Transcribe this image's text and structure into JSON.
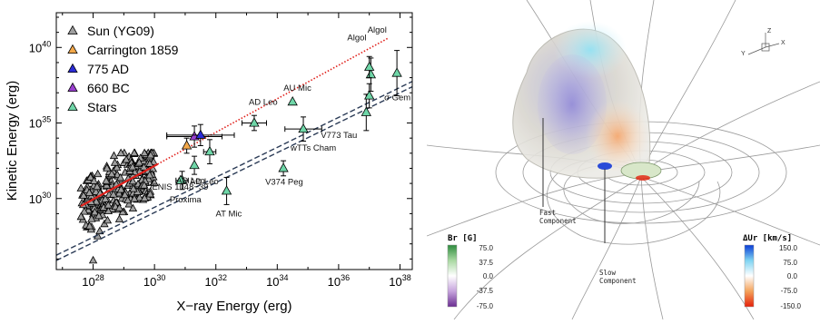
{
  "chart_data": [
    {
      "type": "scatter",
      "xlabel": "X−ray Energy (erg)",
      "ylabel": "Kinetic Energy (erg)",
      "xscale": "log",
      "yscale": "log",
      "xlim_log10": [
        26.8,
        38.4
      ],
      "ylim_log10": [
        25.3,
        42.3
      ],
      "x_ticks": [
        "10^28",
        "10^30",
        "10^32",
        "10^34",
        "10^36",
        "10^38"
      ],
      "x_tick_exponents": [
        28,
        30,
        32,
        34,
        36,
        38
      ],
      "y_ticks": [
        "10^30",
        "10^35",
        "10^40"
      ],
      "y_tick_exponents": [
        30,
        35,
        40
      ],
      "legend": {
        "placement": "top-left",
        "entries": [
          {
            "label": "Sun (YG09)",
            "color": "#9e9e9e"
          },
          {
            "label": "Carrington 1859",
            "color": "#f3a84a"
          },
          {
            "label": "775 AD",
            "color": "#2b2bd6"
          },
          {
            "label": "660 BC",
            "color": "#9a3fd0"
          },
          {
            "label": "Stars",
            "color": "#6fd6a8"
          }
        ]
      },
      "series": [
        {
          "name": "Stars",
          "color": "#6fd6a8",
          "points": [
            {
              "label": "DENIS 1048−39",
              "x_log10": 30.9,
              "y_log10": 31.2,
              "xerr": 0.2,
              "yerr": 0.6
            },
            {
              "label": "Proxima",
              "x_log10": 30.85,
              "y_log10": 31.2,
              "xerr": 0.0,
              "yerr": 0.0
            },
            {
              "label": "AD Leo",
              "x_log10": 31.3,
              "y_log10": 32.2,
              "xerr": 0.0,
              "yerr": 0.6
            },
            {
              "label": "AD Leo",
              "x_log10": 31.8,
              "y_log10": 33.1,
              "xerr": 0.2,
              "yerr": 0.8
            },
            {
              "label": "AT Mic",
              "x_log10": 32.35,
              "y_log10": 30.5,
              "xerr": 0.0,
              "yerr": 0.9
            },
            {
              "label": "AD Leo",
              "x_log10": 33.25,
              "y_log10": 35.0,
              "xerr": 0.4,
              "yerr": 0.5
            },
            {
              "label": "AU Mic",
              "x_log10": 34.5,
              "y_log10": 36.4,
              "xerr": 0.0,
              "yerr": 0.0
            },
            {
              "label": "wTTs Cham",
              "x_log10": 34.85,
              "y_log10": 34.6,
              "xerr": 0.6,
              "yerr": 0.8
            },
            {
              "label": "V374 Peg",
              "x_log10": 34.2,
              "y_log10": 32.0,
              "xerr": 0.0,
              "yerr": 0.5
            },
            {
              "label": "V773 Tau",
              "x_log10": 36.9,
              "y_log10": 35.7,
              "xerr": 0.0,
              "yerr": 1.2
            },
            {
              "label": "",
              "x_log10": 37.0,
              "y_log10": 36.8,
              "xerr": 0.0,
              "yerr": 0.8
            },
            {
              "label": "Algol",
              "x_log10": 37.05,
              "y_log10": 38.2,
              "xerr": 0.0,
              "yerr": 1.1
            },
            {
              "label": "Algol",
              "x_log10": 37.0,
              "y_log10": 38.7,
              "xerr": 0.0,
              "yerr": 0.7
            },
            {
              "label": "σ Gem",
              "x_log10": 37.9,
              "y_log10": 38.3,
              "xerr": 0.0,
              "yerr": 1.5
            }
          ]
        },
        {
          "name": "Carrington 1859",
          "color": "#f3a84a",
          "points": [
            {
              "x_log10": 31.05,
              "y_log10": 33.5,
              "xerr": 0.0,
              "yerr": 0.5
            }
          ]
        },
        {
          "name": "775 AD",
          "color": "#2b2bd6",
          "points": [
            {
              "x_log10": 31.5,
              "y_log10": 34.2,
              "xerr": 1.1,
              "yerr": 0.7
            }
          ]
        },
        {
          "name": "660 BC",
          "color": "#9a3fd0",
          "points": [
            {
              "x_log10": 31.3,
              "y_log10": 34.1,
              "xerr": 0.9,
              "yerr": 0.7
            }
          ]
        },
        {
          "name": "Sun (YG09)",
          "color": "#9e9e9e",
          "cluster": {
            "x_range_log10": [
              27.6,
              30.0
            ],
            "y_range_log10": [
              27.5,
              33.0
            ],
            "count": 260
          },
          "outlier": {
            "x_log10": 28.0,
            "y_log10": 25.9
          }
        }
      ],
      "fits": [
        {
          "style": "solid-red",
          "color": "#e0201b",
          "from": [
            27.6,
            29.5
          ],
          "to": [
            37.6,
            40.6
          ],
          "dotted_beyond_log10": 30.1
        },
        {
          "style": "dashed-black",
          "color": "#2a3a55",
          "from": [
            26.8,
            25.9
          ],
          "to": [
            38.4,
            37.4
          ]
        },
        {
          "style": "dashed-black",
          "color": "#2a3a55",
          "from": [
            26.8,
            26.25
          ],
          "to": [
            38.4,
            37.75
          ]
        }
      ]
    },
    {
      "type": "heatmap",
      "panel": "3D magnetic field visualization",
      "axis_triad": [
        "Z",
        "Y",
        "X"
      ],
      "annotations": [
        {
          "id": "fast",
          "text": [
            "Fast",
            "Component"
          ]
        },
        {
          "id": "slow",
          "text": [
            "Slow",
            "Component"
          ]
        }
      ],
      "colorbars": [
        {
          "title": "Br [G]",
          "ticks": [
            "75.0",
            "37.5",
            "0.0",
            "-37.5",
            "-75.0"
          ],
          "colors": [
            "#2e8b3e",
            "#a9d9a2",
            "#ffffff",
            "#c6a3dd",
            "#6a2c91"
          ]
        },
        {
          "title": "ΔUr [km/s]",
          "ticks": [
            "150.0",
            "75.0",
            "0.0",
            "-75.0",
            "-150.0"
          ],
          "colors": [
            "#0a3bd6",
            "#7fd4f2",
            "#ffffff",
            "#f4a25a",
            "#e5200a"
          ]
        }
      ]
    }
  ]
}
